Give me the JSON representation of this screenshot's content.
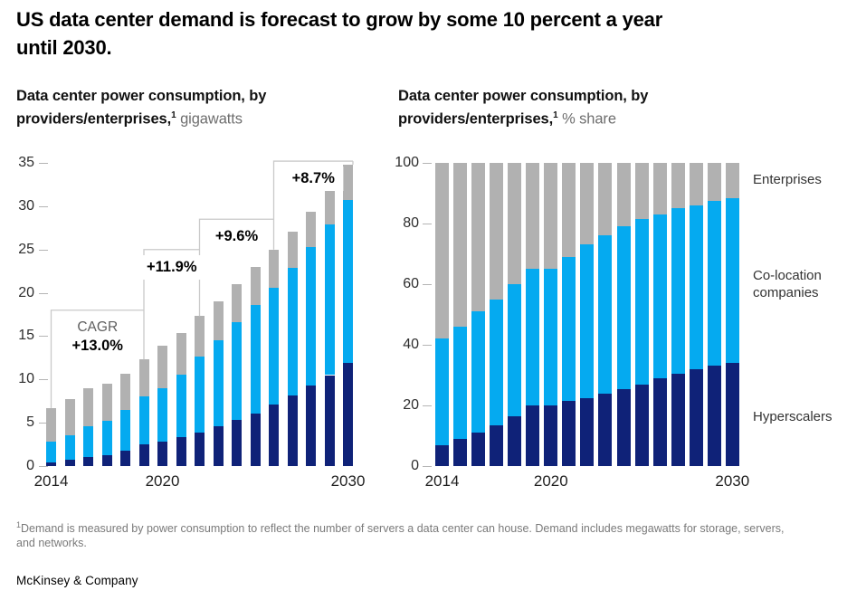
{
  "ui": {
    "title": {
      "line1": "US data center demand is forecast to grow by some 10 percent a year",
      "line2": "until 2030."
    },
    "footnote": {
      "sup": "1",
      "line1": "Demand is measured by power consumption to reflect the number of servers a data center can house. Demand includes megawatts for storage, servers,",
      "line2": "and networks."
    },
    "source": "McKinsey & Company"
  },
  "colors": {
    "hyperscalers": "#0f2278",
    "colocation": "#05aaf0",
    "enterprises": "#b1b1b1",
    "bracket_line": "#c9c9c9"
  },
  "chart_data": [
    {
      "type": "bar",
      "stacked": true,
      "heading": {
        "line1": "Data center power consumption, by",
        "line2_bold": "providers/enterprises,",
        "sup": "1",
        "unit": "gigawatts"
      },
      "x": [
        2014,
        2015,
        2016,
        2017,
        2018,
        2019,
        2020,
        2021,
        2022,
        2023,
        2024,
        2025,
        2026,
        2027,
        2028,
        2029,
        2030
      ],
      "series": [
        {
          "name": "Hyperscalers",
          "color": "#0f2278",
          "values": [
            0.4,
            0.7,
            1.0,
            1.3,
            1.8,
            2.5,
            2.8,
            3.3,
            3.9,
            4.6,
            5.3,
            6.1,
            7.1,
            8.2,
            9.3,
            10.5,
            11.9
          ]
        },
        {
          "name": "Co-location companies",
          "color": "#05aaf0",
          "values": [
            2.4,
            2.9,
            3.6,
            3.9,
            4.7,
            5.5,
            6.2,
            7.3,
            8.7,
            9.9,
            11.3,
            12.5,
            13.5,
            14.7,
            16.0,
            17.4,
            18.8
          ]
        },
        {
          "name": "Enterprises",
          "color": "#b1b1b1",
          "values": [
            3.9,
            4.1,
            4.4,
            4.3,
            4.2,
            4.3,
            4.9,
            4.8,
            4.7,
            4.5,
            4.4,
            4.4,
            4.4,
            4.2,
            4.1,
            4.1,
            4.1
          ]
        }
      ],
      "ylim": [
        0,
        35
      ],
      "yticks": [
        0,
        5,
        10,
        15,
        20,
        25,
        30,
        35
      ],
      "xticks": [
        {
          "label": "2014",
          "index": 0
        },
        {
          "label": "2020",
          "index": 6
        },
        {
          "label": "2030",
          "index": 16
        }
      ],
      "grid": false,
      "annotations": {
        "cagr_prefix": "CAGR",
        "brackets": [
          {
            "label": "+13.0%",
            "level": 18.0,
            "from_index": 0,
            "to_index": 5
          },
          {
            "label": "+11.9%",
            "level": 25.0,
            "from_index": 5,
            "to_index": 8
          },
          {
            "label": "+9.6%",
            "level": 28.5,
            "from_index": 8,
            "to_index": 12
          },
          {
            "label": "+8.7%",
            "level": 35.2,
            "from_index": 12,
            "to_index": 16
          }
        ]
      }
    },
    {
      "type": "bar",
      "stacked": true,
      "heading": {
        "line1": "Data center power consumption, by",
        "line2_bold": "providers/enterprises,",
        "sup": "1",
        "unit": "% share"
      },
      "x": [
        2014,
        2015,
        2016,
        2017,
        2018,
        2019,
        2020,
        2021,
        2022,
        2023,
        2024,
        2025,
        2026,
        2027,
        2028,
        2029,
        2030
      ],
      "series": [
        {
          "name": "Hyperscalers",
          "color": "#0f2278",
          "values": [
            7,
            9,
            11,
            13.5,
            16.5,
            20,
            20,
            21.5,
            22.5,
            24,
            25.5,
            27,
            29,
            30.5,
            32,
            33,
            34
          ]
        },
        {
          "name": "Co-location companies",
          "color": "#05aaf0",
          "values": [
            35,
            37,
            40,
            41.5,
            43.5,
            45,
            45,
            47.5,
            50.5,
            52,
            53.5,
            54.5,
            54,
            54.5,
            54,
            54.5,
            54.5
          ]
        },
        {
          "name": "Enterprises",
          "color": "#b1b1b1",
          "values": [
            58,
            54,
            49,
            45,
            40,
            35,
            35,
            31,
            27,
            24,
            21,
            18.5,
            17,
            15,
            14,
            12.5,
            11.5
          ]
        }
      ],
      "ylim": [
        0,
        100
      ],
      "yticks": [
        0,
        20,
        40,
        60,
        80,
        100
      ],
      "xticks": [
        {
          "label": "2014",
          "index": 0
        },
        {
          "label": "2020",
          "index": 6
        },
        {
          "label": "2030",
          "index": 16
        }
      ],
      "grid": false,
      "legend_position": "right"
    }
  ]
}
